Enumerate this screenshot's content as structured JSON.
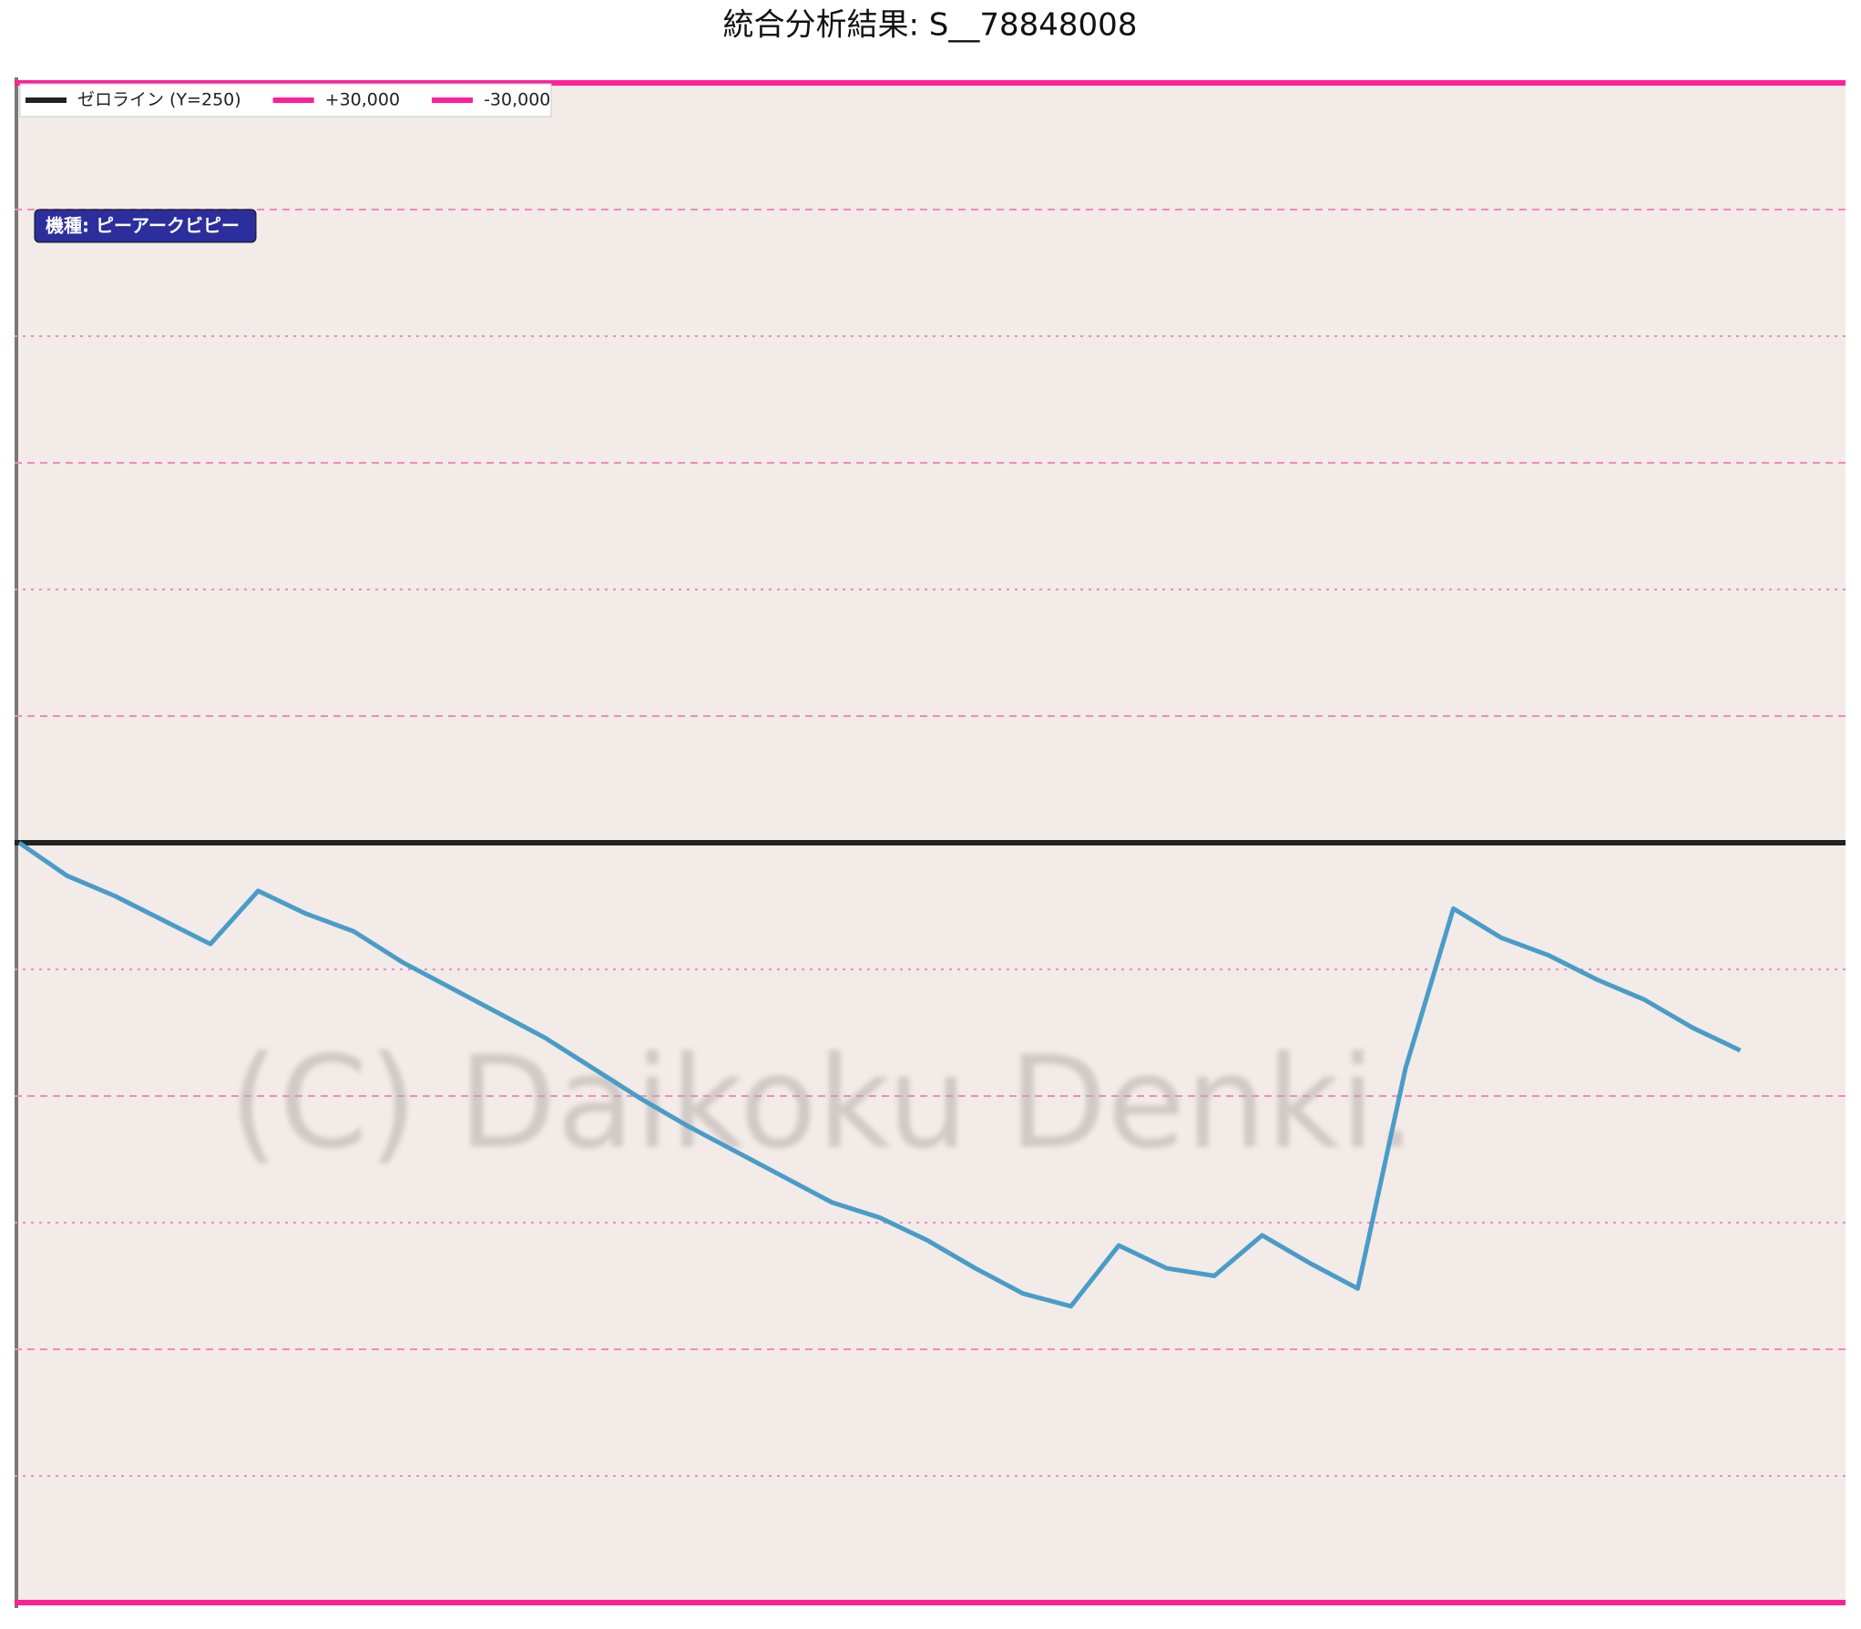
{
  "chart_data": {
    "type": "line",
    "title": "統合分析結果: S__78848008",
    "badge": "機種: ピーアークビピー",
    "watermark": "(C) Daikoku Denki.",
    "ylim": [
      -30000,
      30000
    ],
    "yticks": [
      -25000,
      -20000,
      -15000,
      -10000,
      -5000,
      5000,
      10000,
      15000,
      20000,
      25000
    ],
    "grid": true,
    "reference_lines": [
      {
        "name": "ゼロライン (Y=250)",
        "value": 0,
        "color": "#222222"
      },
      {
        "name": "+30,000",
        "value": 30000,
        "color": "#ff1f9a"
      },
      {
        "name": "-30,000",
        "value": -30000,
        "color": "#ff1f9a"
      }
    ],
    "series": [
      {
        "color": "#4a9cc8",
        "values": [
          0,
          -1300,
          -2100,
          -3050,
          -4000,
          -1900,
          -2800,
          -3500,
          -4700,
          -5700,
          -6700,
          -7700,
          -8900,
          -10100,
          -11200,
          -12200,
          -13200,
          -14200,
          -14800,
          -15700,
          -16800,
          -17800,
          -18300,
          -15900,
          -16800,
          -17100,
          -15500,
          -16600,
          -17600,
          -8900,
          -2600,
          -3750,
          -4450,
          -5400,
          -6200,
          -7300,
          -8200
        ]
      }
    ]
  }
}
